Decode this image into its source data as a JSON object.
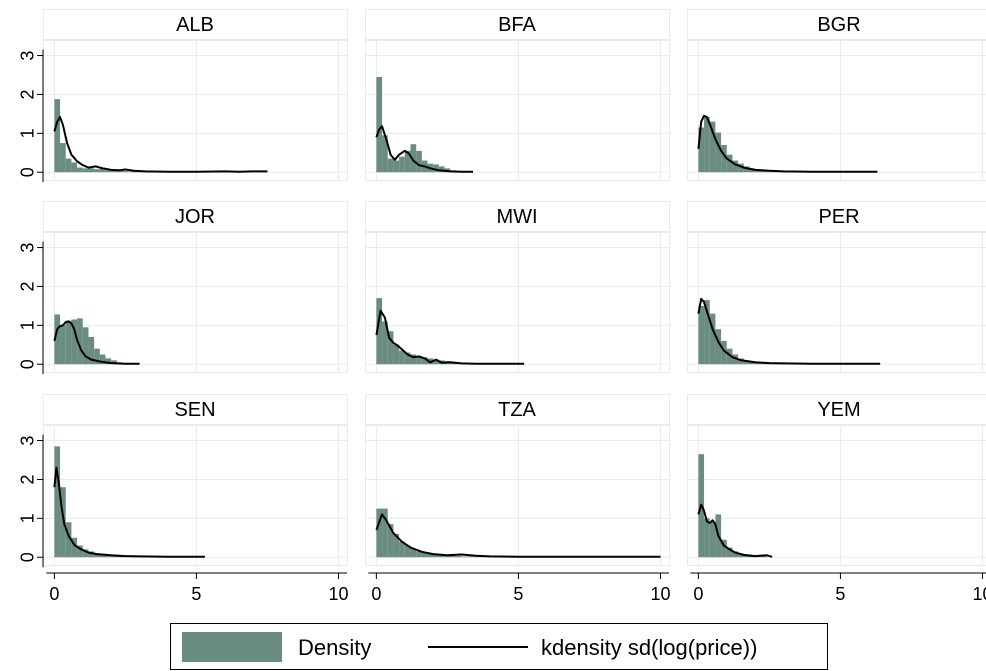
{
  "chart_data": {
    "type": "histogram-with-kde",
    "layout": "3x3 small multiples",
    "x_ticks": [
      0,
      5,
      10
    ],
    "y_ticks": [
      0,
      1,
      2,
      3
    ],
    "xlim": [
      -0.4,
      10.3
    ],
    "ylim": [
      -0.2,
      3.4
    ],
    "grid": true,
    "colors": {
      "bar": "#6b8d7f",
      "kde": "#000000",
      "title_bg": "#ffffff",
      "axis": "#000000",
      "grid": "#e8ecee"
    },
    "legend": {
      "position": "bottom",
      "items": [
        {
          "label": "Density",
          "kind": "bar"
        },
        {
          "label": "kdensity sd(log(price))",
          "kind": "line"
        }
      ]
    },
    "panels": [
      {
        "title": "ALB",
        "bars": [
          1.88,
          0.75,
          0.35,
          0.25,
          0.12,
          0.1,
          0.1,
          0.08,
          0.12,
          0.05,
          0.05,
          0.04,
          0.03,
          0.02,
          0.02,
          0.02,
          0.01,
          0.01
        ],
        "kde": [
          [
            0,
            1.05
          ],
          [
            0.1,
            1.3
          ],
          [
            0.2,
            1.42
          ],
          [
            0.3,
            1.22
          ],
          [
            0.45,
            0.75
          ],
          [
            0.6,
            0.45
          ],
          [
            0.8,
            0.28
          ],
          [
            1.0,
            0.18
          ],
          [
            1.2,
            0.12
          ],
          [
            1.45,
            0.15
          ],
          [
            1.7,
            0.1
          ],
          [
            2.0,
            0.06
          ],
          [
            2.3,
            0.05
          ],
          [
            2.5,
            0.07
          ],
          [
            2.8,
            0.04
          ],
          [
            3.2,
            0.02
          ],
          [
            4.0,
            0.01
          ],
          [
            5.0,
            0.01
          ],
          [
            6.0,
            0.02
          ],
          [
            6.5,
            0.01
          ],
          [
            7.0,
            0.02
          ],
          [
            7.5,
            0.02
          ]
        ]
      },
      {
        "title": "BFA",
        "bars": [
          2.45,
          0.95,
          0.35,
          0.3,
          0.4,
          0.55,
          0.72,
          0.55,
          0.3,
          0.22,
          0.2,
          0.15,
          0.1,
          0.05
        ],
        "kde": [
          [
            0,
            0.9
          ],
          [
            0.1,
            1.1
          ],
          [
            0.2,
            1.18
          ],
          [
            0.35,
            0.85
          ],
          [
            0.5,
            0.45
          ],
          [
            0.65,
            0.32
          ],
          [
            0.8,
            0.45
          ],
          [
            1.0,
            0.55
          ],
          [
            1.15,
            0.48
          ],
          [
            1.3,
            0.3
          ],
          [
            1.5,
            0.18
          ],
          [
            1.7,
            0.15
          ],
          [
            1.9,
            0.1
          ],
          [
            2.2,
            0.05
          ],
          [
            2.6,
            0.02
          ],
          [
            3.0,
            0.01
          ],
          [
            3.4,
            0.01
          ]
        ]
      },
      {
        "title": "BGR",
        "bars": [
          1.15,
          1.42,
          1.3,
          1.02,
          0.7,
          0.45,
          0.3,
          0.22,
          0.15,
          0.1,
          0.08,
          0.05,
          0.04,
          0.03,
          0.02,
          0.02,
          0.01,
          0.01,
          0.01,
          0.01
        ],
        "kde": [
          [
            0,
            0.6
          ],
          [
            0.1,
            1.3
          ],
          [
            0.2,
            1.45
          ],
          [
            0.3,
            1.42
          ],
          [
            0.45,
            1.15
          ],
          [
            0.6,
            0.85
          ],
          [
            0.8,
            0.55
          ],
          [
            1.0,
            0.35
          ],
          [
            1.3,
            0.2
          ],
          [
            1.6,
            0.12
          ],
          [
            2.0,
            0.06
          ],
          [
            2.5,
            0.04
          ],
          [
            3.0,
            0.02
          ],
          [
            4.0,
            0.01
          ],
          [
            5.0,
            0.01
          ],
          [
            6.3,
            0.01
          ]
        ]
      },
      {
        "title": "JOR",
        "bars": [
          1.28,
          1.0,
          1.12,
          1.15,
          1.18,
          0.95,
          0.7,
          0.4,
          0.25,
          0.15,
          0.1,
          0.05
        ],
        "kde": [
          [
            0,
            0.6
          ],
          [
            0.1,
            0.9
          ],
          [
            0.2,
            0.98
          ],
          [
            0.3,
            1.0
          ],
          [
            0.4,
            1.08
          ],
          [
            0.5,
            1.1
          ],
          [
            0.6,
            1.05
          ],
          [
            0.7,
            0.9
          ],
          [
            0.8,
            0.62
          ],
          [
            0.95,
            0.35
          ],
          [
            1.1,
            0.2
          ],
          [
            1.3,
            0.12
          ],
          [
            1.6,
            0.07
          ],
          [
            2.0,
            0.03
          ],
          [
            2.5,
            0.01
          ],
          [
            3.0,
            0.01
          ]
        ]
      },
      {
        "title": "MWI",
        "bars": [
          1.7,
          1.1,
          0.85,
          0.5,
          0.35,
          0.3,
          0.25,
          0.2,
          0.18,
          0.15,
          0.12,
          0.1,
          0.08,
          0.05,
          0.04,
          0.03
        ],
        "kde": [
          [
            0,
            0.75
          ],
          [
            0.15,
            1.38
          ],
          [
            0.3,
            1.2
          ],
          [
            0.45,
            0.68
          ],
          [
            0.6,
            0.55
          ],
          [
            0.75,
            0.48
          ],
          [
            0.9,
            0.38
          ],
          [
            1.1,
            0.25
          ],
          [
            1.3,
            0.18
          ],
          [
            1.5,
            0.2
          ],
          [
            1.7,
            0.15
          ],
          [
            1.9,
            0.05
          ],
          [
            2.1,
            0.12
          ],
          [
            2.3,
            0.04
          ],
          [
            2.6,
            0.05
          ],
          [
            3.0,
            0.02
          ],
          [
            3.5,
            0.01
          ],
          [
            4.0,
            0.01
          ],
          [
            5.2,
            0.01
          ]
        ]
      },
      {
        "title": "PER",
        "bars": [
          1.5,
          1.65,
          1.3,
          0.9,
          0.6,
          0.4,
          0.25,
          0.15,
          0.1,
          0.07,
          0.05,
          0.03,
          0.02,
          0.02,
          0.01,
          0.01,
          0.01
        ],
        "kde": [
          [
            0,
            1.3
          ],
          [
            0.1,
            1.68
          ],
          [
            0.2,
            1.6
          ],
          [
            0.35,
            1.25
          ],
          [
            0.5,
            0.9
          ],
          [
            0.7,
            0.58
          ],
          [
            0.9,
            0.35
          ],
          [
            1.2,
            0.18
          ],
          [
            1.5,
            0.1
          ],
          [
            2.0,
            0.05
          ],
          [
            2.5,
            0.03
          ],
          [
            3.0,
            0.02
          ],
          [
            4.0,
            0.01
          ],
          [
            5.0,
            0.01
          ],
          [
            6.4,
            0.01
          ]
        ]
      },
      {
        "title": "SEN",
        "bars": [
          2.85,
          1.8,
          0.9,
          0.5,
          0.3,
          0.2,
          0.15,
          0.1,
          0.07,
          0.05,
          0.04,
          0.03,
          0.02,
          0.02,
          0.01,
          0.01
        ],
        "kde": [
          [
            0,
            1.8
          ],
          [
            0.07,
            2.3
          ],
          [
            0.15,
            1.95
          ],
          [
            0.25,
            1.3
          ],
          [
            0.35,
            0.85
          ],
          [
            0.5,
            0.55
          ],
          [
            0.7,
            0.32
          ],
          [
            0.9,
            0.22
          ],
          [
            1.2,
            0.12
          ],
          [
            1.5,
            0.08
          ],
          [
            2.0,
            0.05
          ],
          [
            2.5,
            0.03
          ],
          [
            3.0,
            0.02
          ],
          [
            4.0,
            0.01
          ],
          [
            5.3,
            0.01
          ]
        ]
      },
      {
        "title": "TZA",
        "bars": [
          1.25,
          1.25,
          0.85,
          0.6,
          0.4,
          0.3,
          0.22,
          0.15,
          0.12,
          0.1,
          0.08,
          0.06,
          0.05,
          0.04,
          0.03,
          0.02,
          0.02,
          0.01,
          0.01,
          0.01
        ],
        "kde": [
          [
            0,
            0.7
          ],
          [
            0.2,
            1.1
          ],
          [
            0.35,
            0.95
          ],
          [
            0.6,
            0.62
          ],
          [
            0.9,
            0.4
          ],
          [
            1.2,
            0.25
          ],
          [
            1.6,
            0.14
          ],
          [
            2.0,
            0.08
          ],
          [
            2.5,
            0.05
          ],
          [
            3.0,
            0.07
          ],
          [
            3.5,
            0.04
          ],
          [
            4.0,
            0.02
          ],
          [
            5.0,
            0.01
          ],
          [
            6.0,
            0.01
          ],
          [
            8.0,
            0.01
          ],
          [
            10.0,
            0.01
          ]
        ]
      },
      {
        "title": "YEM",
        "bars": [
          2.65,
          1.0,
          0.9,
          1.1,
          0.45,
          0.25,
          0.15,
          0.08,
          0.05,
          0.04,
          0.03,
          0.04
        ],
        "kde": [
          [
            0,
            1.1
          ],
          [
            0.1,
            1.35
          ],
          [
            0.2,
            1.2
          ],
          [
            0.3,
            0.92
          ],
          [
            0.4,
            0.88
          ],
          [
            0.5,
            0.95
          ],
          [
            0.6,
            0.85
          ],
          [
            0.7,
            0.55
          ],
          [
            0.9,
            0.3
          ],
          [
            1.1,
            0.2
          ],
          [
            1.3,
            0.12
          ],
          [
            1.6,
            0.06
          ],
          [
            2.0,
            0.03
          ],
          [
            2.4,
            0.05
          ],
          [
            2.6,
            0.01
          ]
        ]
      }
    ]
  }
}
